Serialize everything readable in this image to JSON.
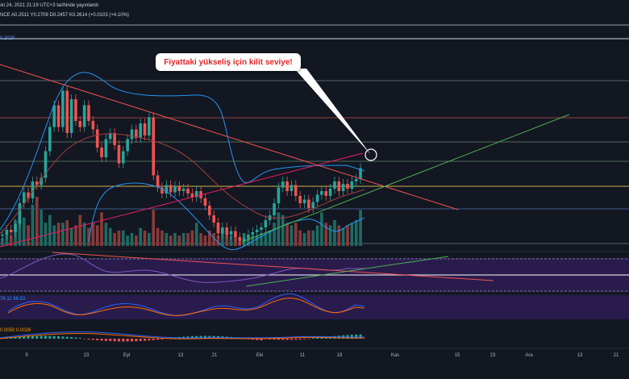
{
  "header": {
    "published": "ıki 24, 2021 21:19 UTC+3 tarihinde yayınlandı",
    "ohlc": "NCE  A0.2511  Y0.2709  D0.2457  K0.2614  (+0.0103 (+4.10%)",
    "indicator": "0.2020"
  },
  "annotation": {
    "text": "Fiyattaki yükseliş için kilit seviye!"
  },
  "oscillators": {
    "stoch_values": "76.11  66.53",
    "macd_values": "0.0050  0.0026"
  },
  "x_axis": {
    "labels": [
      "9",
      "23",
      "Eyl",
      "13",
      "21",
      "Eki",
      "11",
      "19",
      "Kas",
      "15",
      "23",
      "Ara",
      "13",
      "21"
    ]
  },
  "colors": {
    "background": "#131722",
    "bull": "#26a69a",
    "bear": "#ef5350",
    "bollinger": "#2196f3",
    "trend_red": "#ef5350",
    "trend_green": "#4caf50",
    "trend_pink": "#e91e63",
    "callout_text": "#e02424",
    "indicator_fill": "#2a1b4d"
  },
  "chart_data": {
    "type": "candlestick",
    "candles": [
      [
        0.35,
        0.36
      ],
      [
        0.36,
        0.4
      ],
      [
        0.4,
        0.38
      ],
      [
        0.38,
        0.45
      ],
      [
        0.45,
        0.62
      ],
      [
        0.62,
        0.71
      ],
      [
        0.71,
        0.66
      ],
      [
        0.66,
        0.8
      ],
      [
        0.8,
        0.77
      ],
      [
        0.77,
        0.83
      ],
      [
        0.83,
        1.05
      ],
      [
        1.05,
        1.25
      ],
      [
        1.25,
        1.43
      ],
      [
        1.43,
        1.25
      ],
      [
        1.25,
        1.55
      ],
      [
        1.55,
        1.2
      ],
      [
        1.2,
        1.48
      ],
      [
        1.48,
        1.3
      ],
      [
        1.3,
        1.25
      ],
      [
        1.25,
        1.43
      ],
      [
        1.43,
        1.3
      ],
      [
        1.3,
        1.23
      ],
      [
        1.23,
        1.08
      ],
      [
        1.08,
        1.0
      ],
      [
        1.0,
        1.15
      ],
      [
        1.15,
        1.2
      ],
      [
        1.2,
        1.1
      ],
      [
        1.1,
        0.95
      ],
      [
        0.95,
        1.05
      ],
      [
        1.05,
        1.15
      ],
      [
        1.15,
        1.23
      ],
      [
        1.23,
        1.16
      ],
      [
        1.16,
        1.28
      ],
      [
        1.28,
        1.18
      ],
      [
        1.18,
        1.33
      ],
      [
        1.33,
        0.85
      ],
      [
        0.85,
        0.75
      ],
      [
        0.75,
        0.7
      ],
      [
        0.7,
        0.77
      ],
      [
        0.77,
        0.71
      ],
      [
        0.71,
        0.76
      ],
      [
        0.76,
        0.72
      ],
      [
        0.72,
        0.74
      ],
      [
        0.74,
        0.7
      ],
      [
        0.7,
        0.67
      ],
      [
        0.67,
        0.72
      ],
      [
        0.72,
        0.66
      ],
      [
        0.66,
        0.6
      ],
      [
        0.6,
        0.52
      ],
      [
        0.52,
        0.46
      ],
      [
        0.46,
        0.37
      ],
      [
        0.37,
        0.42
      ],
      [
        0.42,
        0.36
      ],
      [
        0.36,
        0.39
      ],
      [
        0.39,
        0.34
      ],
      [
        0.34,
        0.31
      ],
      [
        0.31,
        0.33
      ],
      [
        0.33,
        0.36
      ],
      [
        0.36,
        0.38
      ],
      [
        0.38,
        0.4
      ],
      [
        0.4,
        0.42
      ],
      [
        0.42,
        0.48
      ],
      [
        0.48,
        0.52
      ],
      [
        0.52,
        0.62
      ],
      [
        0.62,
        0.75
      ],
      [
        0.75,
        0.8
      ],
      [
        0.8,
        0.72
      ],
      [
        0.72,
        0.77
      ],
      [
        0.77,
        0.68
      ],
      [
        0.68,
        0.62
      ],
      [
        0.62,
        0.65
      ],
      [
        0.65,
        0.58
      ],
      [
        0.58,
        0.63
      ],
      [
        0.63,
        0.69
      ],
      [
        0.69,
        0.72
      ],
      [
        0.72,
        0.68
      ],
      [
        0.68,
        0.74
      ],
      [
        0.74,
        0.8
      ],
      [
        0.8,
        0.72
      ],
      [
        0.72,
        0.78
      ],
      [
        0.78,
        0.74
      ],
      [
        0.74,
        0.8
      ],
      [
        0.8,
        0.82
      ],
      [
        0.82,
        0.91
      ]
    ],
    "volume": [
      0.3,
      0.5,
      0.4,
      1.0,
      0.9,
      1.1,
      0.8,
      1.6,
      1.9,
      1.4,
      0.9,
      1.2,
      0.8,
      0.9,
      0.9,
      1.0,
      0.7,
      0.8,
      1.2,
      0.9,
      0.7,
      0.9,
      0.8,
      1.3,
      0.9,
      0.7,
      0.5,
      0.6,
      0.6,
      0.4,
      0.5,
      0.4,
      0.7,
      0.6,
      0.5,
      1.4,
      0.7,
      0.6,
      0.5,
      0.4,
      0.5,
      0.4,
      0.5,
      0.5,
      0.6,
      0.9,
      0.5,
      0.4,
      0.6,
      0.5,
      0.4,
      0.6,
      0.5,
      0.4,
      0.4,
      0.3,
      0.5,
      0.4,
      0.4,
      0.4,
      0.5,
      0.5,
      0.6,
      0.9,
      1.3,
      1.2,
      0.9,
      0.8,
      0.9,
      0.6,
      0.5,
      0.6,
      0.6,
      0.8,
      1.3,
      0.9,
      0.8,
      1.0,
      0.8,
      0.7,
      0.8,
      0.9,
      1.0,
      1.4
    ]
  }
}
